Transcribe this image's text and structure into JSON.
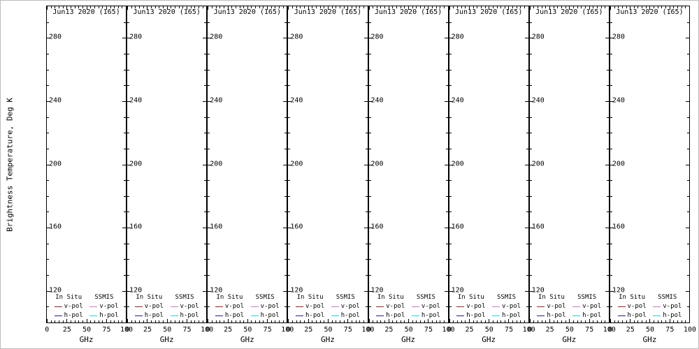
{
  "figure": {
    "background": "#ffffff",
    "ylabel": "Brightness Temperature, Deg K",
    "panel_title": "Jun13 2020 (165)",
    "panel_count": 8,
    "xlabel": "GHz",
    "ylim": [
      100,
      300
    ],
    "xlim": [
      0,
      100
    ],
    "yticks": [
      280,
      240,
      200,
      160,
      120
    ],
    "xticks": [
      0,
      25,
      50,
      75,
      100
    ],
    "y_minor_step": 10,
    "x_minor_step": 5,
    "legend": {
      "col1_header": "In Situ",
      "col2_header": "SSMIS",
      "vpol_label": "v-pol",
      "hpol_label": "h-pol",
      "colors": {
        "insitu_vpol": "#992222",
        "insitu_hpol": "#222277",
        "ssmis_vpol": "#cc77cc",
        "ssmis_hpol": "#33cccc"
      }
    }
  },
  "chart_data": {
    "type": "line",
    "layout": "8 identical side-by-side panels (small multiples), all empty of curves",
    "panels": [
      {
        "title": "Jun13 2020 (165)"
      },
      {
        "title": "Jun13 2020 (165)"
      },
      {
        "title": "Jun13 2020 (165)"
      },
      {
        "title": "Jun13 2020 (165)"
      },
      {
        "title": "Jun13 2020 (165)"
      },
      {
        "title": "Jun13 2020 (165)"
      },
      {
        "title": "Jun13 2020 (165)"
      },
      {
        "title": "Jun13 2020 (165)"
      }
    ],
    "xlabel": "GHz",
    "ylabel": "Brightness Temperature, Deg K",
    "xlim": [
      0,
      100
    ],
    "ylim": [
      100,
      300
    ],
    "xticks": [
      0,
      25,
      50,
      75,
      100
    ],
    "yticks": [
      120,
      160,
      200,
      240,
      280
    ],
    "grid": false,
    "legend_position": "bottom-inside-each-panel",
    "legend_entries": [
      {
        "group": "In Situ",
        "name": "v-pol",
        "color": "#992222"
      },
      {
        "group": "In Situ",
        "name": "h-pol",
        "color": "#222277"
      },
      {
        "group": "SSMIS",
        "name": "v-pol",
        "color": "#cc77cc"
      },
      {
        "group": "SSMIS",
        "name": "h-pol",
        "color": "#33cccc"
      }
    ],
    "series": []
  }
}
